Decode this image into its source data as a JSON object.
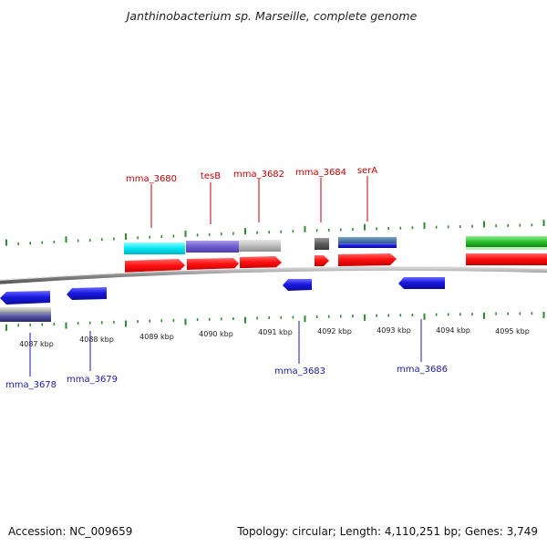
{
  "title": "Janthinobacterium sp. Marseille, complete genome",
  "footer": {
    "accession": "Accession: NC_009659",
    "summary": "Topology: circular; Length: 4,110,251 bp; Genes: 3,749"
  },
  "colors": {
    "forward_cds": "#ff1010",
    "reverse_cds": "#1a1ad8",
    "label_forward": "#c00000",
    "label_reverse": "#1a1aa8",
    "tick": "#2e8b2e",
    "backbone": "#9a9a9a"
  },
  "ticks": [
    "4087 kbp",
    "4088 kbp",
    "4089 kbp",
    "4090 kbp",
    "4091 kbp",
    "4092 kbp",
    "4093 kbp",
    "4094 kbp",
    "4095 kbp"
  ],
  "forward_labels": [
    "mma_3680",
    "tesB",
    "mma_3682",
    "mma_3684",
    "serA"
  ],
  "reverse_labels": [
    "mma_3678",
    "mma_3679",
    "mma_3683",
    "mma_3686"
  ]
}
